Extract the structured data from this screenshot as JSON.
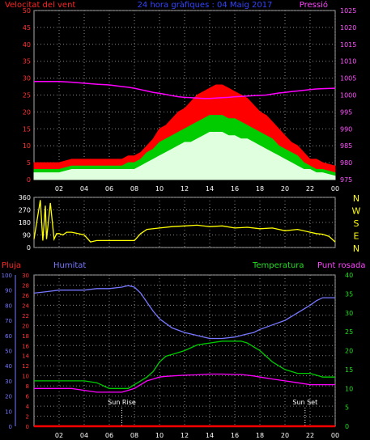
{
  "chart_data": [
    {
      "type": "line",
      "title": "24 hora gràfiques : 04 Maig 2017",
      "left_axis_label": "Velocitat del vent",
      "right_axis_label": "Pressió",
      "x_ticks": [
        "02",
        "04",
        "06",
        "08",
        "10",
        "12",
        "14",
        "16",
        "18",
        "20",
        "22",
        "00"
      ],
      "left_ticks": [
        0,
        5,
        10,
        15,
        20,
        25,
        30,
        35,
        40,
        45,
        50
      ],
      "right_ticks": [
        975,
        980,
        985,
        990,
        995,
        1000,
        1005,
        1010,
        1015,
        1020,
        1025
      ],
      "ylim_left": [
        0,
        50
      ],
      "ylim_right": [
        975,
        1025
      ],
      "x": [
        0,
        1,
        2,
        3,
        4,
        5,
        6,
        7,
        7.5,
        8,
        8.5,
        9,
        9.5,
        10,
        10.5,
        11,
        11.5,
        12,
        12.5,
        13,
        13.5,
        14,
        14.5,
        15,
        15.5,
        16,
        16.5,
        17,
        17.5,
        18,
        18.5,
        19,
        19.5,
        20,
        20.5,
        21,
        21.5,
        22,
        22.5,
        23,
        24
      ],
      "series": [
        {
          "key": "gust",
          "color": "#ff0000",
          "values": [
            5,
            5,
            5,
            6,
            6,
            6,
            6,
            6,
            7,
            7,
            8,
            10,
            12,
            15,
            16,
            18,
            20,
            21,
            23,
            25,
            26,
            27,
            28,
            28,
            27,
            26,
            25,
            24,
            22,
            20,
            19,
            17,
            15,
            13,
            11,
            10,
            8,
            6,
            6,
            5,
            4
          ]
        },
        {
          "key": "avg_max",
          "color": "#00cc00",
          "values": [
            3,
            3,
            3,
            4,
            4,
            4,
            4,
            4,
            5,
            5,
            6,
            8,
            9,
            11,
            12,
            13,
            14,
            15,
            16,
            17,
            18,
            19,
            19,
            19,
            18,
            18,
            17,
            16,
            15,
            14,
            13,
            12,
            10,
            9,
            8,
            7,
            5,
            4,
            3,
            3,
            2
          ]
        },
        {
          "key": "avg",
          "color": "#dfffdf",
          "values": [
            2,
            2,
            2,
            3,
            3,
            3,
            3,
            3,
            3,
            3,
            4,
            5,
            6,
            7,
            8,
            9,
            10,
            11,
            11,
            12,
            13,
            14,
            14,
            14,
            13,
            13,
            12,
            12,
            11,
            10,
            9,
            8,
            7,
            6,
            5,
            4,
            3,
            3,
            2,
            2,
            1
          ]
        },
        {
          "key": "pressure",
          "color": "#ff00ff",
          "values": [
            1004,
            1004,
            1004,
            1003.8,
            1003.5,
            1003.2,
            1003,
            1002.5,
            1002.3,
            1002,
            1001.6,
            1001.2,
            1000.8,
            1000.5,
            1000.2,
            999.8,
            999.5,
            999.3,
            999.2,
            999.1,
            999,
            999,
            999.1,
            999.2,
            999.3,
            999.5,
            999.6,
            999.7,
            999.8,
            999.9,
            1000,
            1000.3,
            1000.6,
            1000.8,
            1001,
            1001.2,
            1001.4,
            1001.6,
            1001.8,
            1001.9,
            1002
          ]
        }
      ]
    },
    {
      "type": "line",
      "left_ticks": [
        0,
        90,
        180,
        270,
        360
      ],
      "right_labels": [
        "N",
        "W",
        "S",
        "E",
        "N"
      ],
      "ylim": [
        0,
        360
      ],
      "x_ticks": [
        "02",
        "04",
        "06",
        "08",
        "10",
        "12",
        "14",
        "16",
        "18",
        "20",
        "22",
        "00"
      ],
      "series": [
        {
          "key": "direction",
          "color": "#ffff00",
          "x": [
            0,
            0.5,
            0.7,
            0.9,
            1.0,
            1.3,
            1.6,
            1.8,
            2,
            2.3,
            2.6,
            3,
            3.5,
            4,
            4.5,
            5,
            5.5,
            6,
            7,
            8,
            8.5,
            9,
            10,
            11,
            12,
            13,
            14,
            15,
            16,
            17,
            18,
            19,
            20,
            21,
            22,
            22.5,
            23,
            23.5,
            24
          ],
          "values": [
            60,
            340,
            50,
            300,
            60,
            320,
            60,
            100,
            100,
            90,
            110,
            110,
            100,
            90,
            40,
            50,
            50,
            50,
            50,
            50,
            100,
            130,
            140,
            150,
            155,
            160,
            150,
            155,
            140,
            145,
            135,
            140,
            120,
            130,
            110,
            100,
            95,
            80,
            40
          ]
        }
      ]
    },
    {
      "type": "line",
      "labels": {
        "rain": "Pluja",
        "humidity": "Humitat",
        "temperature": "Temperatura",
        "dewpoint": "Punt rosada"
      },
      "humidity_ticks": [
        0,
        10,
        20,
        30,
        40,
        50,
        60,
        70,
        80,
        90,
        100
      ],
      "rain_ticks": [
        0,
        2,
        4,
        6,
        8,
        10,
        12,
        14,
        16,
        18,
        20,
        22,
        24,
        26,
        28,
        30
      ],
      "temp_ticks": [
        0,
        5,
        10,
        15,
        20,
        25,
        30,
        35,
        40
      ],
      "x_ticks": [
        "02",
        "04",
        "06",
        "08",
        "10",
        "12",
        "14",
        "16",
        "18",
        "20",
        "22",
        "00"
      ],
      "annotations": [
        {
          "text": "Sun Rise",
          "x": 7.0
        },
        {
          "text": "Sun Set",
          "x": 21.6
        }
      ],
      "x": [
        0,
        1,
        2,
        3,
        4,
        5,
        6,
        7,
        7.5,
        8,
        8.5,
        9,
        9.5,
        10,
        10.5,
        11,
        12,
        13,
        14,
        15,
        16,
        16.5,
        17,
        17.5,
        18,
        19,
        20,
        21,
        22,
        22.5,
        23,
        23.5,
        24
      ],
      "series": [
        {
          "key": "humidity",
          "color": "#7777ff",
          "scale": "humidity",
          "values": [
            88,
            89,
            90,
            90,
            90,
            91,
            91,
            92,
            93,
            92,
            88,
            82,
            76,
            71,
            68,
            65,
            62,
            60,
            58,
            58,
            59,
            60,
            61,
            62,
            64,
            67,
            70,
            75,
            80,
            83,
            85,
            85,
            85
          ]
        },
        {
          "key": "temperature",
          "color": "#00cc00",
          "scale": "temp",
          "values": [
            12,
            12,
            12,
            12,
            12,
            11.5,
            10,
            10,
            10,
            11,
            12,
            13,
            14.5,
            17,
            18.5,
            19,
            20,
            21.5,
            22,
            22.5,
            22.5,
            22.5,
            22,
            21,
            20,
            17,
            15,
            14,
            14,
            13.5,
            13,
            13,
            13
          ]
        },
        {
          "key": "dewpoint",
          "color": "#ff00ff",
          "scale": "temp",
          "values": [
            10,
            10,
            10,
            10,
            9.5,
            9,
            9,
            9,
            9.5,
            10,
            11,
            12,
            12.5,
            13,
            13.2,
            13.3,
            13.5,
            13.6,
            13.8,
            13.8,
            13.7,
            13.7,
            13.5,
            13.3,
            13,
            12.5,
            12,
            11.5,
            11,
            11,
            11,
            11,
            11
          ]
        },
        {
          "key": "rain",
          "color": "#ff0000",
          "scale": "rain",
          "values": [
            0,
            0,
            0,
            0,
            0,
            0,
            0,
            0,
            0,
            0,
            0,
            0,
            0,
            0,
            0,
            0,
            0,
            0,
            0,
            0,
            0,
            0,
            0,
            0,
            0,
            0,
            0,
            0,
            0,
            0,
            0,
            0,
            0
          ]
        }
      ]
    }
  ]
}
